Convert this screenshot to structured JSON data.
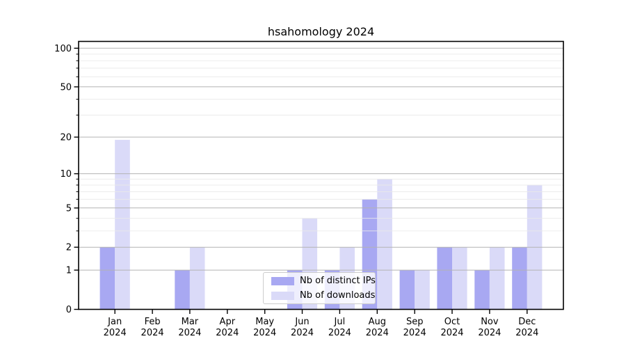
{
  "chart_data": {
    "type": "bar",
    "title": "hsahomology 2024",
    "categories": [
      "Jan",
      "Feb",
      "Mar",
      "Apr",
      "May",
      "Jun",
      "Jul",
      "Aug",
      "Sep",
      "Oct",
      "Nov",
      "Dec"
    ],
    "category_sublabel": "2024",
    "series": [
      {
        "name": "Nb of distinct IPs",
        "color": "#a8a8f2",
        "values": [
          2,
          0,
          1,
          0,
          0,
          1,
          1,
          6,
          1,
          2,
          1,
          2
        ]
      },
      {
        "name": "Nb of downloads",
        "color": "#dadaf8",
        "values": [
          19,
          0,
          2,
          0,
          0,
          4,
          2,
          9,
          1,
          2,
          2,
          8
        ]
      }
    ],
    "yscale": "log1p",
    "ylim": [
      0,
      115
    ],
    "yticks_major": [
      0,
      1,
      2,
      5,
      10,
      20,
      50,
      100
    ],
    "yticks_minor": [
      3,
      4,
      6,
      7,
      8,
      9,
      30,
      40,
      60,
      70,
      80,
      90
    ],
    "grid": true,
    "legend_position": "lower center",
    "colors": {
      "grid_major": "#b3b3b3",
      "grid_minor": "#e9e9e9",
      "spine": "#000000",
      "tick_label": "#000000",
      "legend_border": "#cccccc"
    }
  }
}
